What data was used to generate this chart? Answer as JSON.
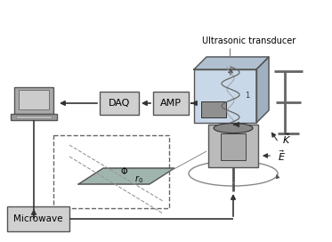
{
  "bg_color": "#ffffff",
  "fc_box": "#d0d0d0",
  "ec_box": "#555555",
  "fc_tank": "#c8d8e8",
  "fc_tank_top": "#b0c0d0",
  "fc_tank_right": "#a0b0c0",
  "fc_plate": "#8fa8a0",
  "fc_device": "#bbbbbb",
  "fc_disk": "#888888",
  "fc_computer": "#999999",
  "arrow_color": "#222222",
  "line_color": "#444444",
  "ultrasonic_label": "Ultrasonic transducer",
  "daq_label": "DAQ",
  "amp_label": "AMP",
  "microwave_label": "Microwave"
}
